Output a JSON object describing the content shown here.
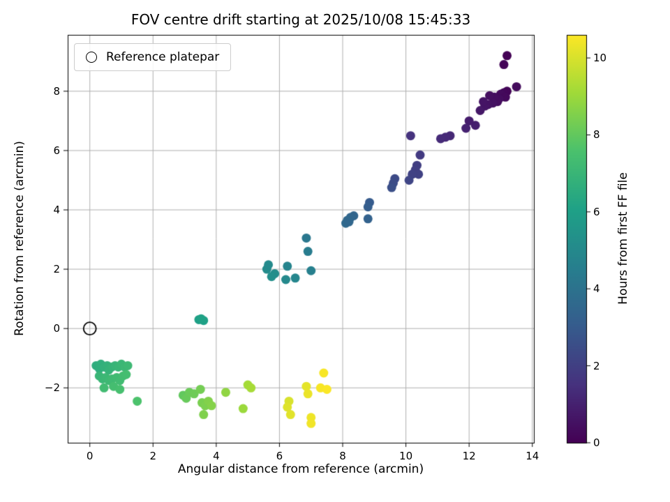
{
  "colors": {
    "background": "#ffffff",
    "grid": "#b0b0b0",
    "spine": "#000000",
    "marker_edge": "#000000"
  },
  "chart_data": {
    "type": "scatter",
    "title": "FOV centre drift starting at 2025/10/08 15:45:33",
    "xlabel": "Angular distance from reference (arcmin)",
    "ylabel": "Rotation from reference (arcmin)",
    "xlim": [
      -0.7,
      14.05
    ],
    "ylim": [
      -3.85,
      9.9
    ],
    "xticks": [
      0,
      2,
      4,
      6,
      8,
      10,
      12,
      14
    ],
    "yticks": [
      -2,
      0,
      2,
      4,
      6,
      8
    ],
    "grid": true,
    "legend": {
      "label": "Reference platepar",
      "position": "upper left"
    },
    "reference_point": {
      "x": 0,
      "y": 0
    },
    "colorbar": {
      "label": "Hours from first FF file",
      "ticks": [
        0,
        2,
        4,
        6,
        8,
        10
      ],
      "vmin": 0,
      "vmax": 10.6,
      "colormap": "viridis"
    },
    "colormap_stops": [
      {
        "t": 0.0,
        "color": "#440154"
      },
      {
        "t": 0.143,
        "color": "#46327e"
      },
      {
        "t": 0.286,
        "color": "#365c8d"
      },
      {
        "t": 0.429,
        "color": "#277f8e"
      },
      {
        "t": 0.571,
        "color": "#1fa187"
      },
      {
        "t": 0.714,
        "color": "#4ac16d"
      },
      {
        "t": 0.857,
        "color": "#a0da39"
      },
      {
        "t": 1.0,
        "color": "#fde725"
      }
    ],
    "points_format": [
      "angular_distance_arcmin",
      "rotation_arcmin",
      "hours_from_first_ff"
    ],
    "points": [
      [
        13.2,
        9.2,
        0.05
      ],
      [
        13.1,
        8.9,
        0.1
      ],
      [
        13.5,
        8.15,
        0.3
      ],
      [
        13.2,
        8.0,
        0.15
      ],
      [
        13.1,
        7.95,
        0.2
      ],
      [
        13.0,
        7.9,
        0.3
      ],
      [
        13.15,
        7.8,
        0.25
      ],
      [
        12.95,
        7.75,
        0.35
      ],
      [
        12.9,
        7.65,
        0.4
      ],
      [
        12.8,
        7.8,
        0.4
      ],
      [
        12.75,
        7.6,
        0.5
      ],
      [
        12.65,
        7.85,
        0.45
      ],
      [
        12.6,
        7.55,
        0.55
      ],
      [
        12.5,
        7.5,
        0.6
      ],
      [
        12.45,
        7.65,
        0.6
      ],
      [
        12.35,
        7.35,
        0.7
      ],
      [
        12.2,
        6.85,
        0.9
      ],
      [
        12.0,
        7.0,
        0.85
      ],
      [
        11.9,
        6.75,
        1.0
      ],
      [
        11.4,
        6.5,
        1.2
      ],
      [
        11.25,
        6.45,
        1.25
      ],
      [
        11.1,
        6.4,
        1.3
      ],
      [
        10.15,
        6.5,
        1.55
      ],
      [
        10.45,
        5.85,
        1.8
      ],
      [
        10.35,
        5.5,
        1.95
      ],
      [
        10.3,
        5.35,
        2.0
      ],
      [
        10.4,
        5.2,
        2.05
      ],
      [
        10.2,
        5.2,
        2.1
      ],
      [
        10.1,
        5.0,
        2.2
      ],
      [
        9.65,
        5.05,
        2.4
      ],
      [
        9.6,
        4.9,
        2.45
      ],
      [
        9.55,
        4.75,
        2.55
      ],
      [
        8.85,
        4.25,
        3.0
      ],
      [
        8.8,
        4.1,
        3.1
      ],
      [
        8.8,
        3.7,
        3.3
      ],
      [
        8.35,
        3.8,
        3.4
      ],
      [
        8.25,
        3.75,
        3.45
      ],
      [
        8.15,
        3.65,
        3.55
      ],
      [
        8.1,
        3.55,
        3.6
      ],
      [
        8.2,
        3.6,
        3.5
      ],
      [
        6.85,
        3.05,
        4.2
      ],
      [
        6.9,
        2.6,
        4.4
      ],
      [
        7.0,
        1.95,
        4.6
      ],
      [
        6.5,
        1.7,
        4.85
      ],
      [
        6.25,
        2.1,
        4.75
      ],
      [
        6.2,
        1.65,
        5.0
      ],
      [
        5.85,
        1.85,
        5.15
      ],
      [
        5.75,
        1.75,
        5.25
      ],
      [
        5.6,
        2.0,
        5.1
      ],
      [
        5.65,
        2.15,
        5.05
      ],
      [
        3.45,
        0.3,
        6.0
      ],
      [
        3.6,
        0.27,
        6.05
      ],
      [
        3.52,
        0.33,
        6.1
      ],
      [
        0.2,
        -1.25,
        6.6
      ],
      [
        0.3,
        -1.35,
        6.65
      ],
      [
        0.35,
        -1.2,
        6.7
      ],
      [
        0.45,
        -1.3,
        6.75
      ],
      [
        0.55,
        -1.25,
        6.8
      ],
      [
        0.6,
        -1.4,
        6.85
      ],
      [
        0.7,
        -1.3,
        6.9
      ],
      [
        0.8,
        -1.25,
        6.95
      ],
      [
        0.9,
        -1.3,
        7.0
      ],
      [
        1.0,
        -1.2,
        7.05
      ],
      [
        1.1,
        -1.3,
        7.1
      ],
      [
        1.2,
        -1.25,
        7.15
      ],
      [
        0.3,
        -1.6,
        7.0
      ],
      [
        0.4,
        -1.7,
        7.05
      ],
      [
        0.5,
        -1.65,
        7.1
      ],
      [
        0.6,
        -1.75,
        7.15
      ],
      [
        0.7,
        -1.7,
        7.2
      ],
      [
        0.85,
        -1.65,
        7.25
      ],
      [
        0.95,
        -1.75,
        7.3
      ],
      [
        1.05,
        -1.6,
        7.35
      ],
      [
        1.15,
        -1.55,
        7.4
      ],
      [
        0.45,
        -2.0,
        7.3
      ],
      [
        0.75,
        -1.95,
        7.4
      ],
      [
        0.95,
        -2.05,
        7.45
      ],
      [
        1.5,
        -2.45,
        7.6
      ],
      [
        2.95,
        -2.25,
        8.0
      ],
      [
        3.05,
        -2.35,
        8.1
      ],
      [
        3.15,
        -2.15,
        8.15
      ],
      [
        3.3,
        -2.2,
        8.2
      ],
      [
        3.5,
        -2.05,
        8.3
      ],
      [
        3.55,
        -2.5,
        8.4
      ],
      [
        3.65,
        -2.6,
        8.45
      ],
      [
        3.6,
        -2.9,
        8.5
      ],
      [
        3.75,
        -2.45,
        8.55
      ],
      [
        3.85,
        -2.6,
        8.6
      ],
      [
        4.3,
        -2.15,
        8.8
      ],
      [
        4.85,
        -2.7,
        9.0
      ],
      [
        5.0,
        -1.9,
        9.15
      ],
      [
        5.1,
        -2.0,
        9.2
      ],
      [
        6.3,
        -2.45,
        10.0
      ],
      [
        6.25,
        -2.65,
        10.1
      ],
      [
        6.35,
        -2.9,
        10.15
      ],
      [
        6.85,
        -1.95,
        10.2
      ],
      [
        6.9,
        -2.2,
        10.3
      ],
      [
        7.0,
        -3.0,
        10.35
      ],
      [
        7.0,
        -3.2,
        10.4
      ],
      [
        7.4,
        -1.5,
        10.5
      ],
      [
        7.3,
        -2.0,
        10.5
      ],
      [
        7.5,
        -2.05,
        10.55
      ]
    ]
  }
}
